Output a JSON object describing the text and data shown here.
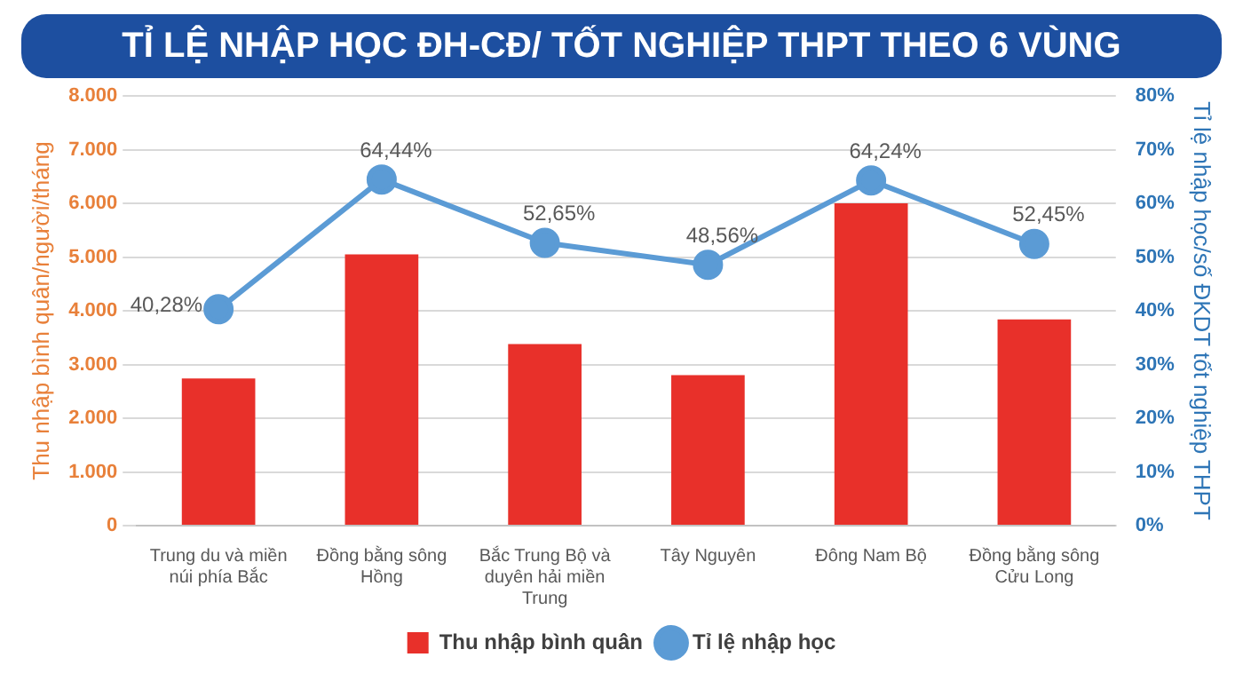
{
  "chart_data": {
    "type": "bar",
    "title": "TỈ LỆ NHẬP HỌC ĐH-CĐ/ TỐT NGHIỆP THPT THEO 6 VÙNG",
    "ylabel": "Thu nhập bình quân/người/tháng",
    "y2label": "Tỉ lệ nhập học/số ĐKDT tốt nghiệp THPT",
    "categories": [
      "Trung du và miền núi phía Bắc",
      "Đồng bằng sông Hồng",
      "Bắc Trung Bộ và duyên hải miền Trung",
      "Tây Nguyên",
      "Đông Nam Bộ",
      "Đồng bằng sông Cửu Long"
    ],
    "series": [
      {
        "name": "Thu nhập bình quân",
        "color": "#e8302a",
        "values": [
          2740,
          5050,
          3380,
          2800,
          6000,
          3840
        ]
      },
      {
        "name": "Tỉ lệ nhập học",
        "type": "line",
        "axis": "y2",
        "color": "#5b9bd5",
        "values": [
          40.28,
          64.44,
          52.65,
          48.56,
          64.24,
          52.45
        ],
        "value_labels": [
          "40,28%",
          "64,44%",
          "52,65%",
          "48,56%",
          "64,24%",
          "52,45%"
        ]
      }
    ],
    "ylim": [
      0,
      8000
    ],
    "yticks": [
      {
        "value": 0,
        "label": "0"
      },
      {
        "value": 1000,
        "label": "1.000"
      },
      {
        "value": 2000,
        "label": "2.000"
      },
      {
        "value": 3000,
        "label": "3.000"
      },
      {
        "value": 4000,
        "label": "4.000"
      },
      {
        "value": 5000,
        "label": "5.000"
      },
      {
        "value": 6000,
        "label": "6.000"
      },
      {
        "value": 7000,
        "label": "7.000"
      },
      {
        "value": 8000,
        "label": "8.000"
      }
    ],
    "y2lim": [
      0,
      80
    ],
    "y2ticks": [
      {
        "value": 0,
        "label": "0%"
      },
      {
        "value": 10,
        "label": "10%"
      },
      {
        "value": 20,
        "label": "20%"
      },
      {
        "value": 30,
        "label": "30%"
      },
      {
        "value": 40,
        "label": "40%"
      },
      {
        "value": 50,
        "label": "50%"
      },
      {
        "value": 60,
        "label": "60%"
      },
      {
        "value": 70,
        "label": "70%"
      },
      {
        "value": 80,
        "label": "80%"
      }
    ],
    "grid": "y",
    "legend": "bottom",
    "marker": "circle"
  }
}
